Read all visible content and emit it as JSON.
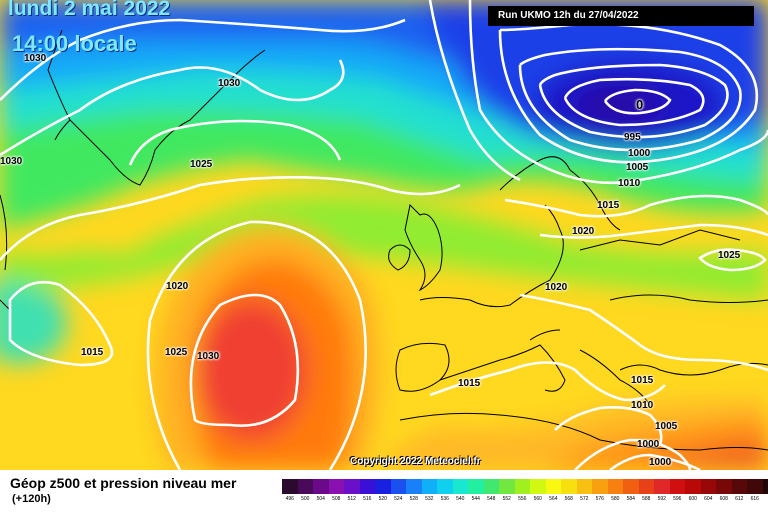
{
  "header": {
    "date_line1": "lundi 2 mai 2022",
    "date_line2": "14:00 locale",
    "run_info": "Run UKMO 12h du 27/04/2022"
  },
  "map": {
    "copyright": "Copyright 2022 Meteociel.fr",
    "isobar_labels": [
      "1030",
      "1030",
      "1030",
      "1025",
      "1020",
      "1015",
      "1025",
      "1030",
      "995",
      "1000",
      "1005",
      "1010",
      "1015",
      "1020",
      "1025",
      "1020",
      "1015",
      "1015",
      "1010",
      "1005",
      "1000",
      "1000",
      "0"
    ],
    "colors": {
      "low_core": "#1a16c8",
      "deep_blue": "#1e40e6",
      "mid_green": "#58e050",
      "yellow": "#fff000",
      "orange": "#ff8a10",
      "red": "#f23838",
      "isobar": "#ffffff",
      "coastline": "#000000"
    }
  },
  "footer": {
    "title": "Géop z500 et pression niveau mer",
    "subtitle": "(+120h)"
  },
  "legend": {
    "labels": [
      "496",
      "500",
      "504",
      "508",
      "512",
      "516",
      "520",
      "524",
      "528",
      "532",
      "536",
      "540",
      "544",
      "548",
      "552",
      "556",
      "560",
      "564",
      "568",
      "572",
      "576",
      "580",
      "584",
      "588",
      "592",
      "596",
      "600",
      "604",
      "608",
      "612",
      "616",
      ""
    ],
    "colors": [
      "#2a0a2e",
      "#4a0a5a",
      "#6a0a8a",
      "#8a10b0",
      "#6a10c8",
      "#3a10d8",
      "#1a20e0",
      "#1a50f0",
      "#1a80f8",
      "#10b0f8",
      "#10d0f0",
      "#18e8d0",
      "#20f0a0",
      "#40e870",
      "#70e840",
      "#a0f020",
      "#d0f810",
      "#f8f810",
      "#f8e010",
      "#f8c010",
      "#f8a010",
      "#f88010",
      "#f06010",
      "#e84018",
      "#e02828",
      "#d01010",
      "#b80808",
      "#980808",
      "#780808",
      "#580808",
      "#400808",
      "#200808"
    ]
  }
}
